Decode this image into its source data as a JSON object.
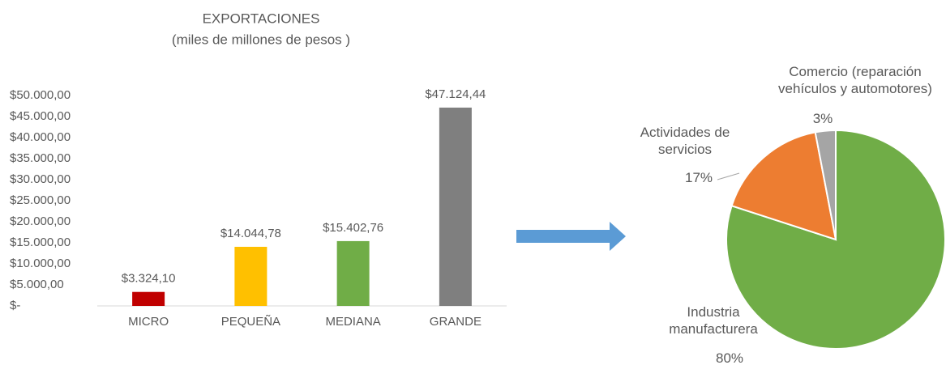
{
  "chart_data": [
    {
      "type": "bar",
      "title": "EXPORTACIONES",
      "subtitle": "(miles de millones de pesos )",
      "categories": [
        "MICRO",
        "PEQUEÑA",
        "MEDIANA",
        "GRANDE"
      ],
      "values": [
        3324.1,
        14044.78,
        15402.76,
        47124.44
      ],
      "value_labels": [
        "$3.324,10",
        "$14.044,78",
        "$15.402,76",
        "$47.124,44"
      ],
      "colors": [
        "#c00000",
        "#ffc000",
        "#70ad47",
        "#7f7f7f"
      ],
      "ylim": [
        0,
        50000
      ],
      "yticks": [
        {
          "value": 0,
          "label": "$-"
        },
        {
          "value": 5000,
          "label": "$5.000,00"
        },
        {
          "value": 10000,
          "label": "$10.000,00"
        },
        {
          "value": 15000,
          "label": "$15.000,00"
        },
        {
          "value": 20000,
          "label": "$20.000,00"
        },
        {
          "value": 25000,
          "label": "$25.000,00"
        },
        {
          "value": 30000,
          "label": "$30.000,00"
        },
        {
          "value": 35000,
          "label": "$35.000,00"
        },
        {
          "value": 40000,
          "label": "$40.000,00"
        },
        {
          "value": 45000,
          "label": "$45.000,00"
        },
        {
          "value": 50000,
          "label": "$50.000,00"
        }
      ],
      "grid": false
    },
    {
      "type": "pie",
      "categories": [
        "Industria manufacturera",
        "Actividades de servicios",
        "Comercio (reparación vehículos y automotores)"
      ],
      "values": [
        80,
        17,
        3
      ],
      "value_labels": [
        "80%",
        "17%",
        "3%"
      ],
      "colors": [
        "#70ad47",
        "#ed7d31",
        "#a5a5a5"
      ]
    }
  ]
}
